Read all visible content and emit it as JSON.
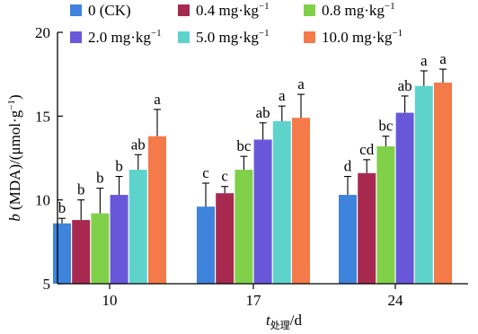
{
  "chart_data": {
    "type": "bar",
    "ylabel": "b (MDA)/(μmol·g⁻¹)",
    "ylabel_italic": "b",
    "ylabel_rest": " (MDA)/(μmol·g",
    "ylabel_exp": "−1",
    "ylabel_close": ")",
    "xlabel_t": "t",
    "xlabel_sub": "处理",
    "xlabel_rest": "/d",
    "ylim": [
      5,
      20
    ],
    "yticks": [
      "5",
      "10",
      "15",
      "20"
    ],
    "grid": false,
    "legend_position": "top",
    "categories": [
      "10",
      "17",
      "24"
    ],
    "series": [
      {
        "name": "0 (CK)",
        "name_main": "0 (CK)",
        "name_exp": "",
        "color": "#3e83dc",
        "values": [
          8.6,
          9.6,
          10.3
        ],
        "errors": [
          0.3,
          1.4,
          1.1
        ],
        "letters": [
          "b",
          "c",
          "d"
        ]
      },
      {
        "name": "0.4 mg·kg⁻¹",
        "name_main": "0.4 mg·kg",
        "name_exp": "−1",
        "color": "#a7294f",
        "values": [
          8.8,
          10.4,
          11.6
        ],
        "errors": [
          1.2,
          0.4,
          0.8
        ],
        "letters": [
          "b",
          "c",
          "cd"
        ]
      },
      {
        "name": "0.8 mg·kg⁻¹",
        "name_main": "0.8 mg·kg",
        "name_exp": "−1",
        "color": "#80d04a",
        "values": [
          9.2,
          11.8,
          13.2
        ],
        "errors": [
          1.5,
          0.8,
          0.6
        ],
        "letters": [
          "b",
          "bc",
          "bc"
        ]
      },
      {
        "name": "2.0 mg·kg⁻¹",
        "name_main": "2.0 mg·kg",
        "name_exp": "−1",
        "color": "#6957da",
        "values": [
          10.3,
          13.6,
          15.2
        ],
        "errors": [
          1.1,
          1.0,
          1.0
        ],
        "letters": [
          "b",
          "ab",
          "ab"
        ]
      },
      {
        "name": "5.0 mg·kg⁻¹",
        "name_main": "5.0 mg·kg",
        "name_exp": "−1",
        "color": "#5ed3cc",
        "values": [
          11.8,
          14.7,
          16.8
        ],
        "errors": [
          0.9,
          0.9,
          0.9
        ],
        "letters": [
          "ab",
          "a",
          "a"
        ]
      },
      {
        "name": "10.0 mg·kg⁻¹",
        "name_main": "10.0 mg·kg",
        "name_exp": "−1",
        "color": "#f47a4a",
        "values": [
          13.8,
          14.9,
          17.0
        ],
        "errors": [
          1.6,
          1.4,
          0.8
        ],
        "letters": [
          "a",
          "a",
          "a"
        ]
      }
    ]
  }
}
